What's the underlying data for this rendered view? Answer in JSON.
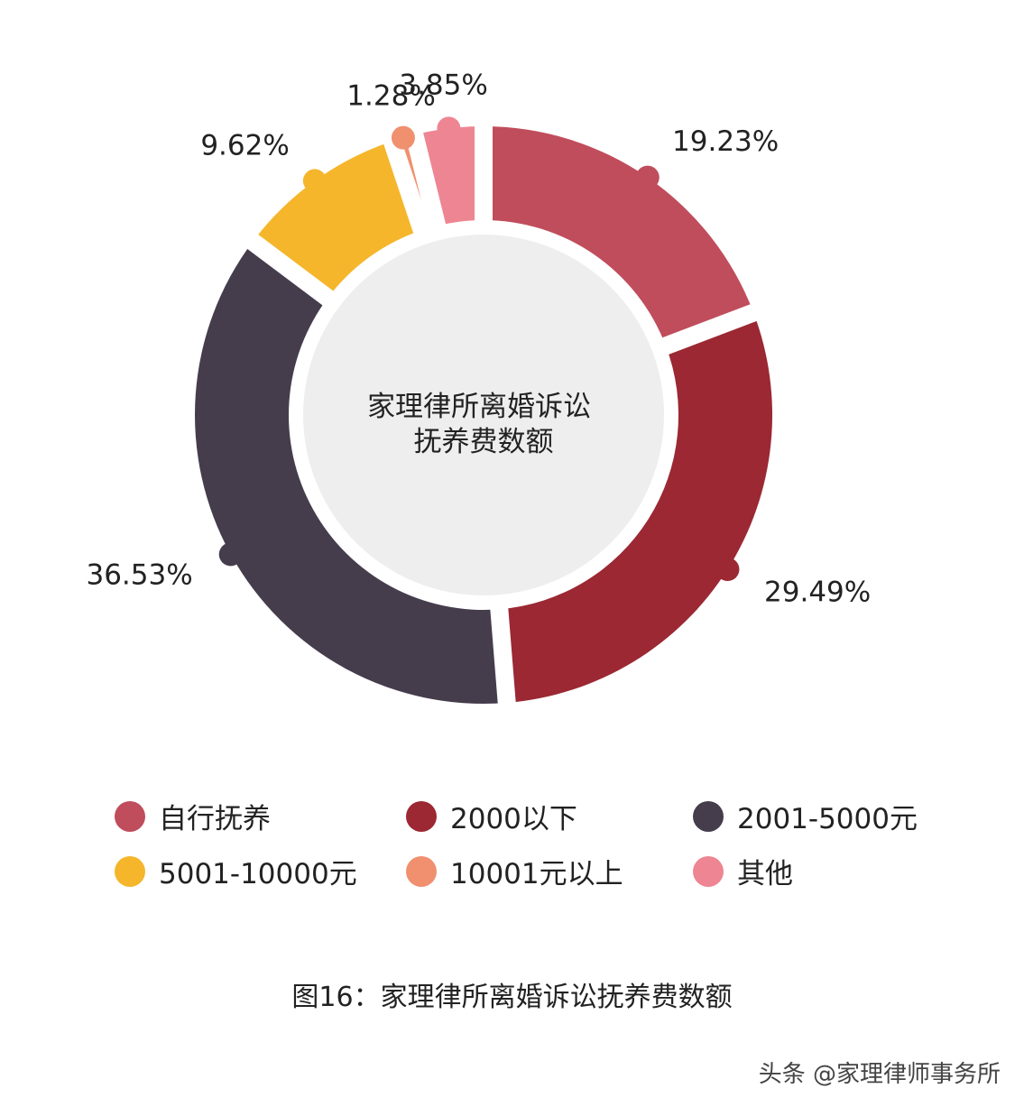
{
  "chart_data": {
    "type": "pie",
    "donut": true,
    "center_text": [
      "家理律所离婚诉讼",
      "抚养费数额"
    ],
    "categories": [
      "自行抚养",
      "2000以下",
      "2001-5000元",
      "5001-10000元",
      "10001元以上",
      "其他"
    ],
    "values": [
      19.23,
      29.49,
      36.53,
      9.62,
      1.28,
      3.85
    ],
    "labels": [
      "19.23%",
      "29.49%",
      "36.53%",
      "9.62%",
      "1.28%",
      "3.85%"
    ],
    "colors": [
      "#C04D5C",
      "#9B2833",
      "#453C4C",
      "#F5B62C",
      "#F0906F",
      "#EE8592"
    ],
    "legend_position": "bottom",
    "center_fill": "#EEEEEE"
  },
  "caption": "图16：家理律所离婚诉讼抚养费数额",
  "watermark": "头条 @家理律师事务所"
}
